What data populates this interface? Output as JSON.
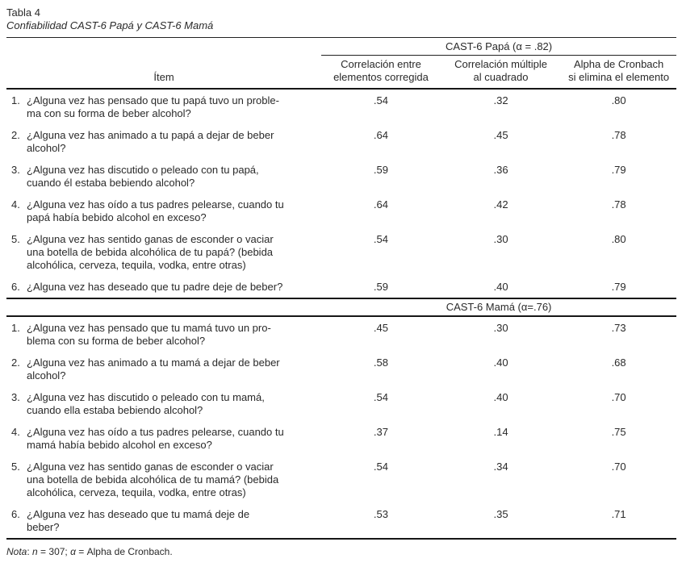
{
  "title": "Tabla 4",
  "subtitle": "Confiabilidad CAST-6 Papá y CAST-6 Mamá",
  "table": {
    "item_header": "Ítem",
    "columns": [
      "Correlación entre\nelementos corregida",
      "Correlación múltiple\nal cuadrado",
      "Alpha de Cronbach\nsi elimina el elemento"
    ],
    "sections": [
      {
        "header": "CAST-6 Papá (α = .82)",
        "rows": [
          {
            "num": "1.",
            "text": "¿Alguna vez has pensado que tu papá tuvo un proble-\nma con su forma de beber alcohol?",
            "values": [
              ".54",
              ".32",
              ".80"
            ]
          },
          {
            "num": "2.",
            "text": "¿Alguna vez has animado a tu papá a dejar de beber\nalcohol?",
            "values": [
              ".64",
              ".45",
              ".78"
            ]
          },
          {
            "num": "3.",
            "text": "¿Alguna vez has discutido o peleado con tu papá,\ncuando él estaba bebiendo alcohol?",
            "values": [
              ".59",
              ".36",
              ".79"
            ]
          },
          {
            "num": "4.",
            "text": "¿Alguna vez has oído a tus padres pelearse, cuando tu\npapá había bebido alcohol en exceso?",
            "values": [
              ".64",
              ".42",
              ".78"
            ]
          },
          {
            "num": "5.",
            "text": "¿Alguna vez has sentido ganas de esconder o vaciar\nuna botella de bebida alcohólica de tu papá? (bebida\nalcohólica, cerveza, tequila, vodka, entre otras)",
            "values": [
              ".54",
              ".30",
              ".80"
            ]
          },
          {
            "num": "6.",
            "text": "¿Alguna vez has deseado que tu padre deje de beber?",
            "values": [
              ".59",
              ".40",
              ".79"
            ]
          }
        ]
      },
      {
        "header": "CAST-6 Mamá (α=.76)",
        "rows": [
          {
            "num": "1.",
            "text": "¿Alguna vez has pensado que tu mamá tuvo un pro-\nblema con su forma de beber alcohol?",
            "values": [
              ".45",
              ".30",
              ".73"
            ]
          },
          {
            "num": "2.",
            "text": "¿Alguna vez has animado a tu mamá a dejar de beber\nalcohol?",
            "values": [
              ".58",
              ".40",
              ".68"
            ]
          },
          {
            "num": "3.",
            "text": "¿Alguna vez has discutido o peleado con tu mamá,\ncuando ella estaba bebiendo alcohol?",
            "values": [
              ".54",
              ".40",
              ".70"
            ]
          },
          {
            "num": "4.",
            "text": "¿Alguna vez has oído a tus padres pelearse, cuando tu\nmamá había bebido alcohol en exceso?",
            "values": [
              ".37",
              ".14",
              ".75"
            ]
          },
          {
            "num": "5.",
            "text": "¿Alguna vez has sentido ganas de esconder o vaciar\nuna botella de bebida alcohólica de tu mamá? (bebida\nalcohólica, cerveza, tequila, vodka, entre otras)",
            "values": [
              ".54",
              ".34",
              ".70"
            ]
          },
          {
            "num": "6.",
            "text": "¿Alguna vez has deseado que tu mamá deje de\nbeber?",
            "values": [
              ".53",
              ".35",
              ".71"
            ]
          }
        ]
      }
    ]
  },
  "note": {
    "label": "Nota",
    "sep": ": ",
    "n_symbol": "n",
    "mid": " = 307; ",
    "alpha_symbol": "α",
    "end": " = Alpha de Cronbach."
  }
}
